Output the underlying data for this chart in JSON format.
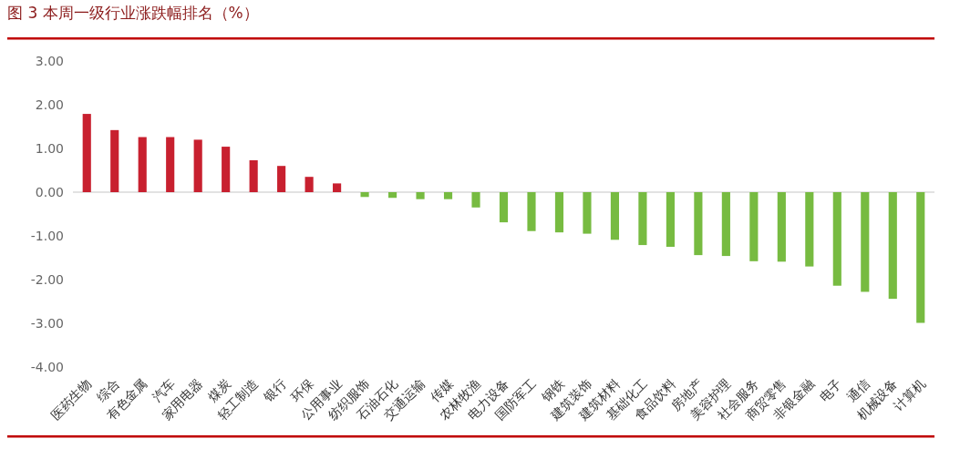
{
  "chart_data": {
    "type": "bar",
    "title": "图 3 本周一级行业涨跌幅排名（%）",
    "categories": [
      "医药生物",
      "综合",
      "有色金属",
      "汽车",
      "家用电器",
      "煤炭",
      "轻工制造",
      "银行",
      "环保",
      "公用事业",
      "纺织服饰",
      "石油石化",
      "交通运输",
      "传媒",
      "农林牧渔",
      "电力设备",
      "国防军工",
      "钢铁",
      "建筑装饰",
      "建筑材料",
      "基础化工",
      "食品饮料",
      "房地产",
      "美容护理",
      "社会服务",
      "商贸零售",
      "非银金融",
      "电子",
      "通信",
      "机械设备",
      "计算机"
    ],
    "values": [
      1.79,
      1.42,
      1.26,
      1.26,
      1.2,
      1.04,
      0.73,
      0.6,
      0.35,
      0.2,
      -0.11,
      -0.13,
      -0.16,
      -0.16,
      -0.35,
      -0.69,
      -0.89,
      -0.92,
      -0.95,
      -1.09,
      -1.21,
      -1.25,
      -1.44,
      -1.46,
      -1.58,
      -1.59,
      -1.7,
      -2.14,
      -2.28,
      -2.44,
      -2.99
    ],
    "colors": [
      "#c8202f",
      "#c8202f",
      "#c8202f",
      "#c8202f",
      "#c8202f",
      "#c8202f",
      "#c8202f",
      "#c8202f",
      "#c8202f",
      "#c8202f",
      "#77bb41",
      "#77bb41",
      "#77bb41",
      "#77bb41",
      "#77bb41",
      "#77bb41",
      "#77bb41",
      "#77bb41",
      "#77bb41",
      "#77bb41",
      "#77bb41",
      "#77bb41",
      "#77bb41",
      "#77bb41",
      "#77bb41",
      "#77bb41",
      "#77bb41",
      "#77bb41",
      "#77bb41",
      "#77bb41",
      "#77bb41"
    ],
    "ylim": [
      -4,
      3
    ],
    "yticks": [
      {
        "value": 3,
        "label": "3.00"
      },
      {
        "value": 2,
        "label": "2.00"
      },
      {
        "value": 1,
        "label": "1.00"
      },
      {
        "value": 0,
        "label": "0.00"
      },
      {
        "value": -1,
        "label": "-1.00"
      },
      {
        "value": -2,
        "label": "-2.00"
      },
      {
        "value": -3,
        "label": "-3.00"
      },
      {
        "value": -4,
        "label": "-4.00"
      }
    ],
    "tick_labels": true
  }
}
